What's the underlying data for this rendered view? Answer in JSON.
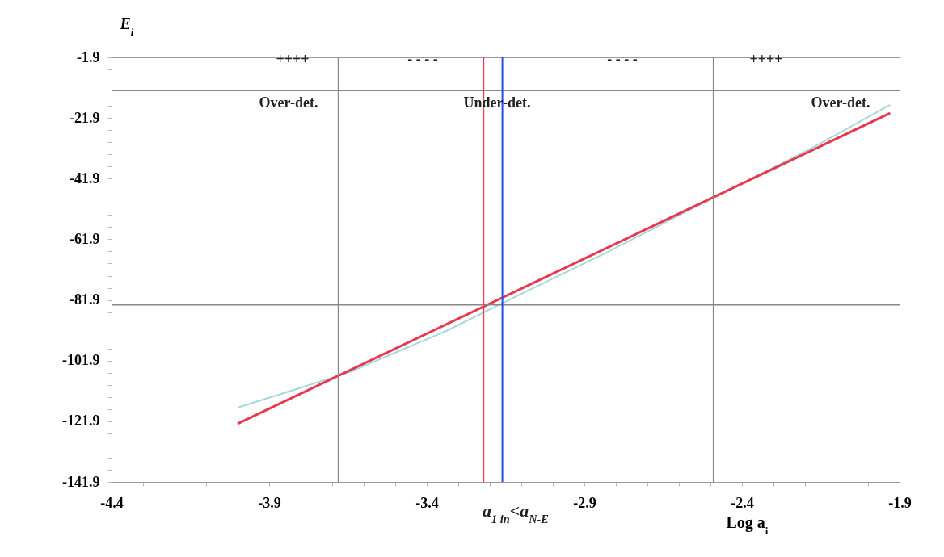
{
  "chart_data": {
    "type": "line",
    "xlabel": "Log a$_{i}$",
    "ylabel": "E$_{i}$",
    "xlim": [
      -4.4,
      -1.9
    ],
    "ylim": [
      -141.9,
      -1.9
    ],
    "xticks": [
      -4.4,
      {
        "value": -4.3,
        "label": null
      },
      {
        "value": -4.2,
        "label": null
      },
      {
        "value": -4.1,
        "label": null
      },
      {
        "value": -4.0,
        "label": null
      },
      -3.9,
      {
        "value": -3.8,
        "label": null
      },
      {
        "value": -3.7,
        "label": null
      },
      {
        "value": -3.6,
        "label": null
      },
      {
        "value": -3.5,
        "label": null
      },
      -3.4,
      {
        "value": -3.3,
        "label": null
      },
      {
        "value": -3.2,
        "label": null
      },
      {
        "value": -3.1,
        "label": null
      },
      {
        "value": -3.0,
        "label": null
      },
      -2.9,
      {
        "value": -2.8,
        "label": null
      },
      {
        "value": -2.7,
        "label": null
      },
      {
        "value": -2.6,
        "label": null
      },
      {
        "value": -2.5,
        "label": null
      },
      -2.4,
      {
        "value": -2.3,
        "label": null
      },
      {
        "value": -2.2,
        "label": null
      },
      {
        "value": -2.1,
        "label": null
      },
      {
        "value": -2.0,
        "label": null
      },
      -1.9
    ],
    "yticks": [
      -141.9,
      {
        "value": -137.9,
        "label": null
      },
      {
        "value": -133.9,
        "label": null
      },
      {
        "value": -129.9,
        "label": null
      },
      {
        "value": -125.9,
        "label": null
      },
      -121.9,
      {
        "value": -117.9,
        "label": null
      },
      {
        "value": -113.9,
        "label": null
      },
      {
        "value": -109.9,
        "label": null
      },
      {
        "value": -105.9,
        "label": null
      },
      -101.9,
      {
        "value": -97.9,
        "label": null
      },
      {
        "value": -93.9,
        "label": null
      },
      {
        "value": -89.9,
        "label": null
      },
      {
        "value": -85.9,
        "label": null
      },
      -81.9,
      {
        "value": -77.9,
        "label": null
      },
      {
        "value": -73.9,
        "label": null
      },
      {
        "value": -69.9,
        "label": null
      },
      {
        "value": -65.9,
        "label": null
      },
      -61.9,
      {
        "value": -57.9,
        "label": null
      },
      {
        "value": -53.9,
        "label": null
      },
      {
        "value": -49.9,
        "label": null
      },
      {
        "value": -45.9,
        "label": null
      },
      -41.9,
      {
        "value": -37.9,
        "label": null
      },
      {
        "value": -33.9,
        "label": null
      },
      {
        "value": -29.9,
        "label": null
      },
      {
        "value": -25.9,
        "label": null
      },
      -21.9,
      {
        "value": -17.9,
        "label": null
      },
      {
        "value": -13.9,
        "label": null
      },
      {
        "value": -9.9,
        "label": null
      },
      {
        "value": -5.9,
        "label": null
      },
      -1.9
    ],
    "grid": false,
    "series": [
      {
        "color": "#a8d8dc",
        "x": [
          -4.0,
          -3.65,
          -3.34,
          -3.09,
          -2.83,
          -2.5,
          -2.19,
          -1.93
        ],
        "values": [
          -117.4,
          -105.9,
          -92.2,
          -79.4,
          -66.3,
          -48.7,
          -32.5,
          -17.6
        ]
      },
      {
        "color": "#e8384f",
        "x": [
          -4.0,
          -1.93
        ],
        "values": [
          -122.7,
          -20.3
        ]
      }
    ],
    "ref_lines": [
      {
        "axis": "y",
        "value": -83.5,
        "color": "#888888"
      },
      {
        "axis": "y",
        "value": -12.8,
        "color": "#888888"
      },
      {
        "axis": "x",
        "value": -3.68,
        "color": "#888888"
      },
      {
        "axis": "x",
        "value": -2.49,
        "color": "#888888"
      },
      {
        "axis": "x",
        "value": -3.22,
        "color": "#f23c50"
      },
      {
        "axis": "x",
        "value": -3.16,
        "color": "#1f4fe6"
      }
    ],
    "annotations": [
      "++++",
      "- - - -",
      "- - - -",
      "++++",
      "Over-det.",
      "Under-det.",
      "Over-det.",
      "a$_{1 in}$<a$_{N-E}$"
    ]
  }
}
